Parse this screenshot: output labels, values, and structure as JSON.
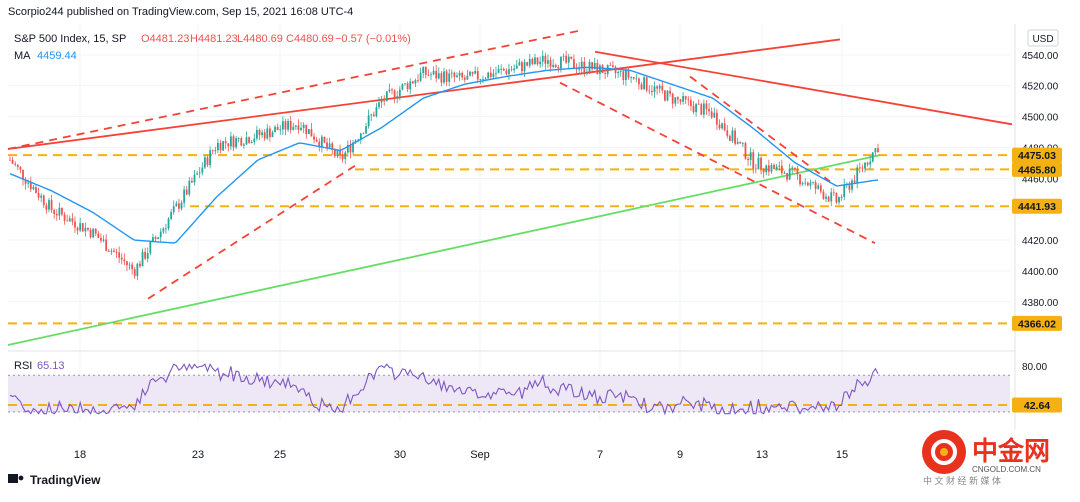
{
  "publish_line": "Scorpio244 published on TradingView.com, Sep 15, 2021 16:08 UTC-4",
  "instrument": {
    "name": "S&P 500 Index, 15, SP",
    "open": "O4481.23",
    "high": "H4481.23",
    "low": "L4480.69",
    "close": "C4480.69",
    "change": "−0.57 (−0.01%)"
  },
  "ma": {
    "label": "MA",
    "value": "4459.44"
  },
  "currency": "USD",
  "rsi": {
    "label": "RSI",
    "value": "65.13"
  },
  "branding": {
    "tradingview": "TradingView",
    "cn_logo": "中金网",
    "cn_domain": "CNGOLD.COM.CN",
    "cn_sub": "中 文 财 经 新 媒 体"
  },
  "colors": {
    "candle_up": "#26a69a",
    "candle_down": "#ef5350",
    "ma": "#2196f3",
    "trend_red": "#f44336",
    "trend_green": "#66dd66",
    "level": "#f5b014",
    "rsi_line": "#7e57c2",
    "rsi_band": "#ede7f6",
    "tag_bg": "#f5b014"
  },
  "chart_data": [
    {
      "type": "candlestick",
      "title": "S&P 500 Index, 15, SP",
      "x_tick_labels": [
        "18",
        "23",
        "25",
        "30",
        "Sep",
        "7",
        "9",
        "13",
        "15"
      ],
      "y_axis": {
        "unit": "USD",
        "ticks": [
          4380,
          4400,
          4420,
          4440,
          4460,
          4480,
          4500,
          4520,
          4540
        ],
        "tick_labels": [
          "4380.00",
          "4400.00",
          "4420.00",
          "4440.00",
          "4460.00",
          "4480.00",
          "4500.00",
          "4520.00",
          "4540.00"
        ],
        "ylim": [
          4352,
          4560
        ]
      },
      "price_labels": [
        {
          "label": "4475.03",
          "value": 4475.03
        },
        {
          "label": "4465.80",
          "value": 4465.8
        },
        {
          "label": "4441.93",
          "value": 4441.93
        },
        {
          "label": "4366.02",
          "value": 4366.02
        }
      ],
      "series": [
        {
          "name": "S&P 500 Index",
          "style": "candles",
          "x": [
            "Aug 16",
            "Aug 17",
            "Aug 18",
            "Aug 19",
            "Aug 20",
            "Aug 23",
            "Aug 24",
            "Aug 25",
            "Aug 26",
            "Aug 27",
            "Aug 30",
            "Aug 31",
            "Sep 1",
            "Sep 2",
            "Sep 3",
            "Sep 7",
            "Sep 8",
            "Sep 9",
            "Sep 10",
            "Sep 13",
            "Sep 14",
            "Sep 15"
          ],
          "close": [
            4472,
            4440,
            4425,
            4400,
            4440,
            4482,
            4488,
            4496,
            4472,
            4510,
            4528,
            4524,
            4530,
            4537,
            4532,
            4526,
            4512,
            4502,
            4470,
            4462,
            4445,
            4481
          ]
        },
        {
          "name": "MA",
          "value": 4459.44,
          "close": [
            4463,
            4452,
            4438,
            4420,
            4418,
            4448,
            4472,
            4483,
            4478,
            4493,
            4512,
            4521,
            4526,
            4530,
            4532,
            4530,
            4521,
            4512,
            4492,
            4470,
            4455,
            4459
          ]
        }
      ],
      "grid": true
    },
    {
      "type": "line",
      "title": "RSI",
      "series": [
        {
          "name": "RSI",
          "value": 65.13
        }
      ],
      "y_axis": {
        "tick_labels": [
          "80.00"
        ],
        "ticks": [
          80
        ]
      },
      "price_labels": [
        {
          "label": "42.64",
          "value": 42.64
        }
      ],
      "bands": [
        30,
        70
      ]
    }
  ]
}
